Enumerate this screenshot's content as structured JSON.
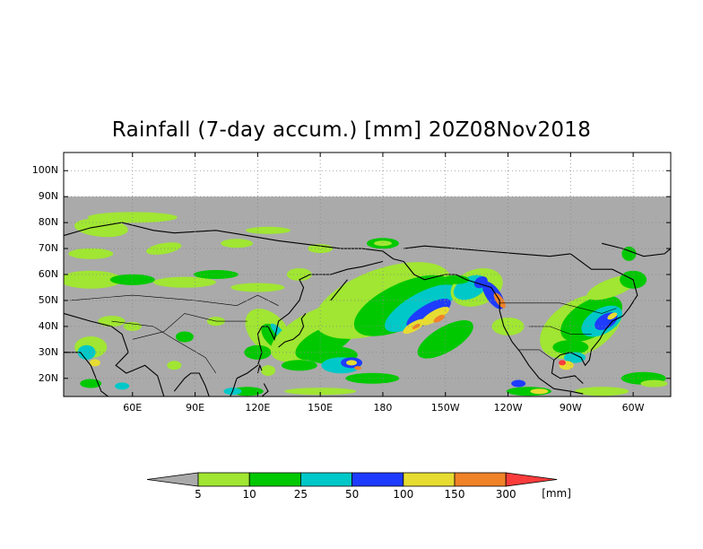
{
  "title": "Rainfall (7-day accum.) [mm] 20Z08Nov2018",
  "map": {
    "lat_range": [
      13,
      107
    ],
    "lon_range": [
      27,
      318
    ],
    "lat_ticks": [
      {
        "value": 20,
        "label": "20N"
      },
      {
        "value": 30,
        "label": "30N"
      },
      {
        "value": 40,
        "label": "40N"
      },
      {
        "value": 50,
        "label": "50N"
      },
      {
        "value": 60,
        "label": "60N"
      },
      {
        "value": 70,
        "label": "70N"
      },
      {
        "value": 80,
        "label": "80N"
      },
      {
        "value": 90,
        "label": "90N"
      },
      {
        "value": 100,
        "label": "100N"
      }
    ],
    "lon_ticks": [
      {
        "value": 60,
        "label": "60E"
      },
      {
        "value": 90,
        "label": "90E"
      },
      {
        "value": 120,
        "label": "120E"
      },
      {
        "value": 150,
        "label": "150E"
      },
      {
        "value": 180,
        "label": "180"
      },
      {
        "value": 210,
        "label": "150W"
      },
      {
        "value": 240,
        "label": "120W"
      },
      {
        "value": 270,
        "label": "90W"
      },
      {
        "value": 300,
        "label": "60W"
      }
    ],
    "no_data_above_lat": 90,
    "colors": {
      "background_missing": "#ffffff",
      "no_rain": "#aaaaaa",
      "coast": "#000000"
    }
  },
  "colorbar": {
    "levels": [
      {
        "label": "5",
        "color": "#aaaaaa"
      },
      {
        "label": "10",
        "color": "#a0e632"
      },
      {
        "label": "25",
        "color": "#00c800"
      },
      {
        "label": "50",
        "color": "#00c8c8"
      },
      {
        "label": "100",
        "color": "#1e3cff"
      },
      {
        "label": "150",
        "color": "#e6dc32"
      },
      {
        "label": "300",
        "color": "#f08228"
      }
    ],
    "over_color": "#fa3c3c",
    "under_color": "#aaaaaa",
    "unit": "[mm]"
  }
}
